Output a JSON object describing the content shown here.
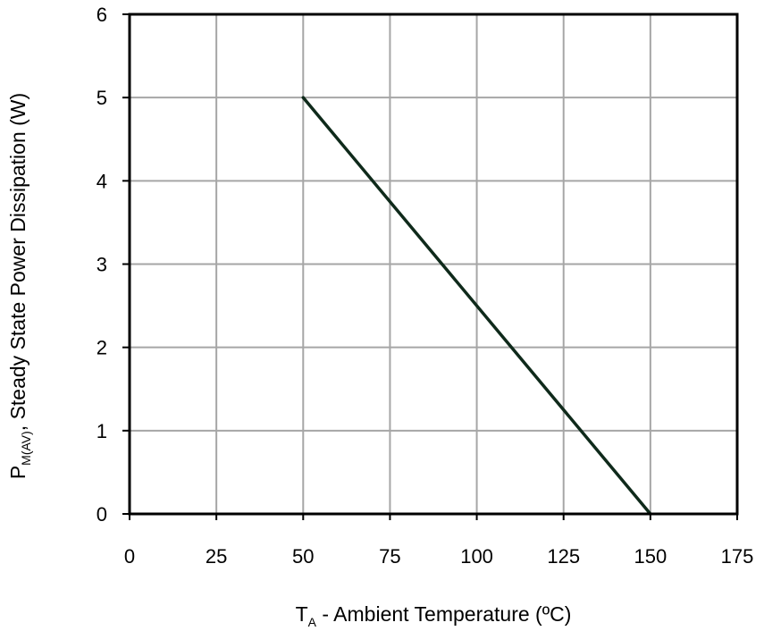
{
  "chart_data": {
    "type": "line",
    "title": "",
    "xlabel": {
      "symbol": "T",
      "subscript": "A",
      "text": " - Ambient Temperature (ºC)"
    },
    "ylabel": {
      "symbol": "P",
      "subscript": "M(AV)",
      "text": ", Steady State Power Dissipation (W)"
    },
    "xlim": [
      0,
      175
    ],
    "ylim": [
      0,
      6
    ],
    "xticks": [
      0,
      25,
      50,
      75,
      100,
      125,
      150,
      175
    ],
    "yticks": [
      0,
      1,
      2,
      3,
      4,
      5,
      6
    ],
    "grid": true,
    "legend": "none",
    "series": [
      {
        "x": [
          50,
          150
        ],
        "y": [
          5,
          0
        ],
        "color": "#0f2a1b"
      }
    ]
  }
}
